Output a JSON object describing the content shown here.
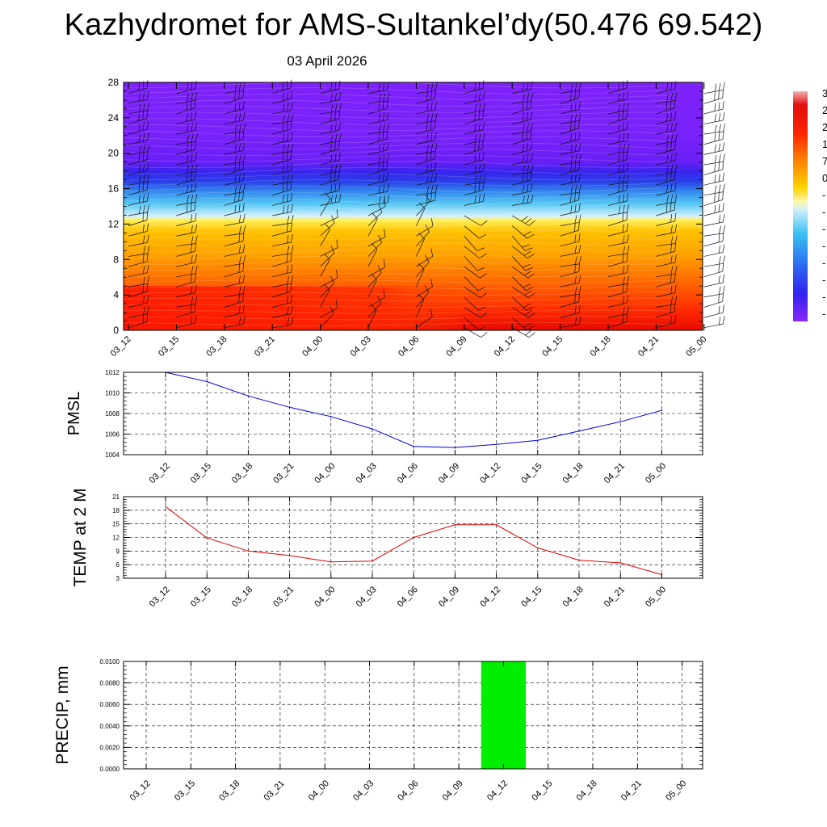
{
  "title": "Kazhydromet for AMS-Sultankel’dy(50.476 69.542)",
  "subtitle": "03 April 2026",
  "colors": {
    "pmsl_line": "#0000dd",
    "temp_line": "#dd0000",
    "precip_bar": "#00ee00",
    "colorbar_stops": [
      "#7f1fff",
      "#3b2bf2",
      "#2f7cf0",
      "#3ec6f2",
      "#cfeaf8",
      "#fff240",
      "#ffb400",
      "#ff7a00",
      "#ff1a00",
      "#d80000",
      "#f2a0a0"
    ]
  },
  "colorbar_labels": [
    "3",
    "2",
    "2",
    "1",
    "7",
    "0",
    "-",
    "-",
    "-",
    "-",
    "-",
    "-",
    "-",
    "-"
  ],
  "chart_data": [
    {
      "type": "heatmap",
      "description": "Time-height cross-section: filled temperature contours with wind barbs",
      "x": [
        "03_12",
        "03_15",
        "03_18",
        "03_21",
        "04_00",
        "04_03",
        "04_06",
        "04_09",
        "04_12",
        "04_15",
        "04_18",
        "04_21",
        "05_00"
      ],
      "y_ticks": [
        0,
        4,
        8,
        12,
        16,
        20,
        24,
        28
      ],
      "ylim": [
        0,
        28
      ],
      "temperature_bands_by_height": [
        {
          "height": 0,
          "value": 20
        },
        {
          "height": 4,
          "value": 14
        },
        {
          "height": 8,
          "value": 7
        },
        {
          "height": 12,
          "value": 0
        },
        {
          "height": 14,
          "value": -15
        },
        {
          "height": 18,
          "value": -40
        },
        {
          "height": 22,
          "value": -52
        },
        {
          "height": 28,
          "value": -55
        }
      ],
      "colorbar_ticks": [
        "3",
        "2",
        "2",
        "1",
        "7",
        "0",
        "-",
        "-",
        "-",
        "-",
        "-",
        "-",
        "-",
        "-"
      ]
    },
    {
      "type": "line",
      "ylabel": "PMSL",
      "x": [
        "03_12",
        "03_15",
        "03_18",
        "03_21",
        "04_00",
        "04_03",
        "04_06",
        "04_09",
        "04_12",
        "04_15",
        "04_18",
        "04_21",
        "05_00"
      ],
      "values": [
        1012.0,
        1011.1,
        1009.7,
        1008.6,
        1007.7,
        1006.5,
        1004.8,
        1004.7,
        1005.0,
        1005.4,
        1006.3,
        1007.2,
        1008.3
      ],
      "ylim": [
        1004,
        1012
      ],
      "yticks": [
        "1004",
        "1006",
        "1008",
        "1010",
        "1012"
      ],
      "grid": true
    },
    {
      "type": "line",
      "ylabel": "TEMP at 2 M",
      "x": [
        "03_12",
        "03_15",
        "03_18",
        "03_21",
        "04_00",
        "04_03",
        "04_06",
        "04_09",
        "04_12",
        "04_15",
        "04_18",
        "04_21",
        "05_00"
      ],
      "values": [
        18.8,
        11.9,
        9.0,
        8.0,
        6.6,
        6.8,
        12.0,
        14.8,
        14.8,
        9.7,
        7.0,
        6.4,
        3.8
      ],
      "ylim": [
        3,
        21
      ],
      "yticks": [
        "3",
        "6",
        "9",
        "12",
        "15",
        "18",
        "21"
      ],
      "grid": true
    },
    {
      "type": "bar",
      "ylabel": "PRECIP, mm",
      "x": [
        "03_12",
        "03_15",
        "03_18",
        "03_21",
        "04_00",
        "04_03",
        "04_06",
        "04_09",
        "04_12",
        "04_15",
        "04_18",
        "04_21",
        "05_00"
      ],
      "values": [
        0,
        0,
        0,
        0,
        0,
        0,
        0,
        0,
        0.01,
        0,
        0,
        0,
        0
      ],
      "ylim": [
        0,
        0.01
      ],
      "yticks": [
        "0.0000",
        "0.0020",
        "0.0040",
        "0.0060",
        "0.0080",
        "0.0100"
      ],
      "grid": true
    }
  ]
}
